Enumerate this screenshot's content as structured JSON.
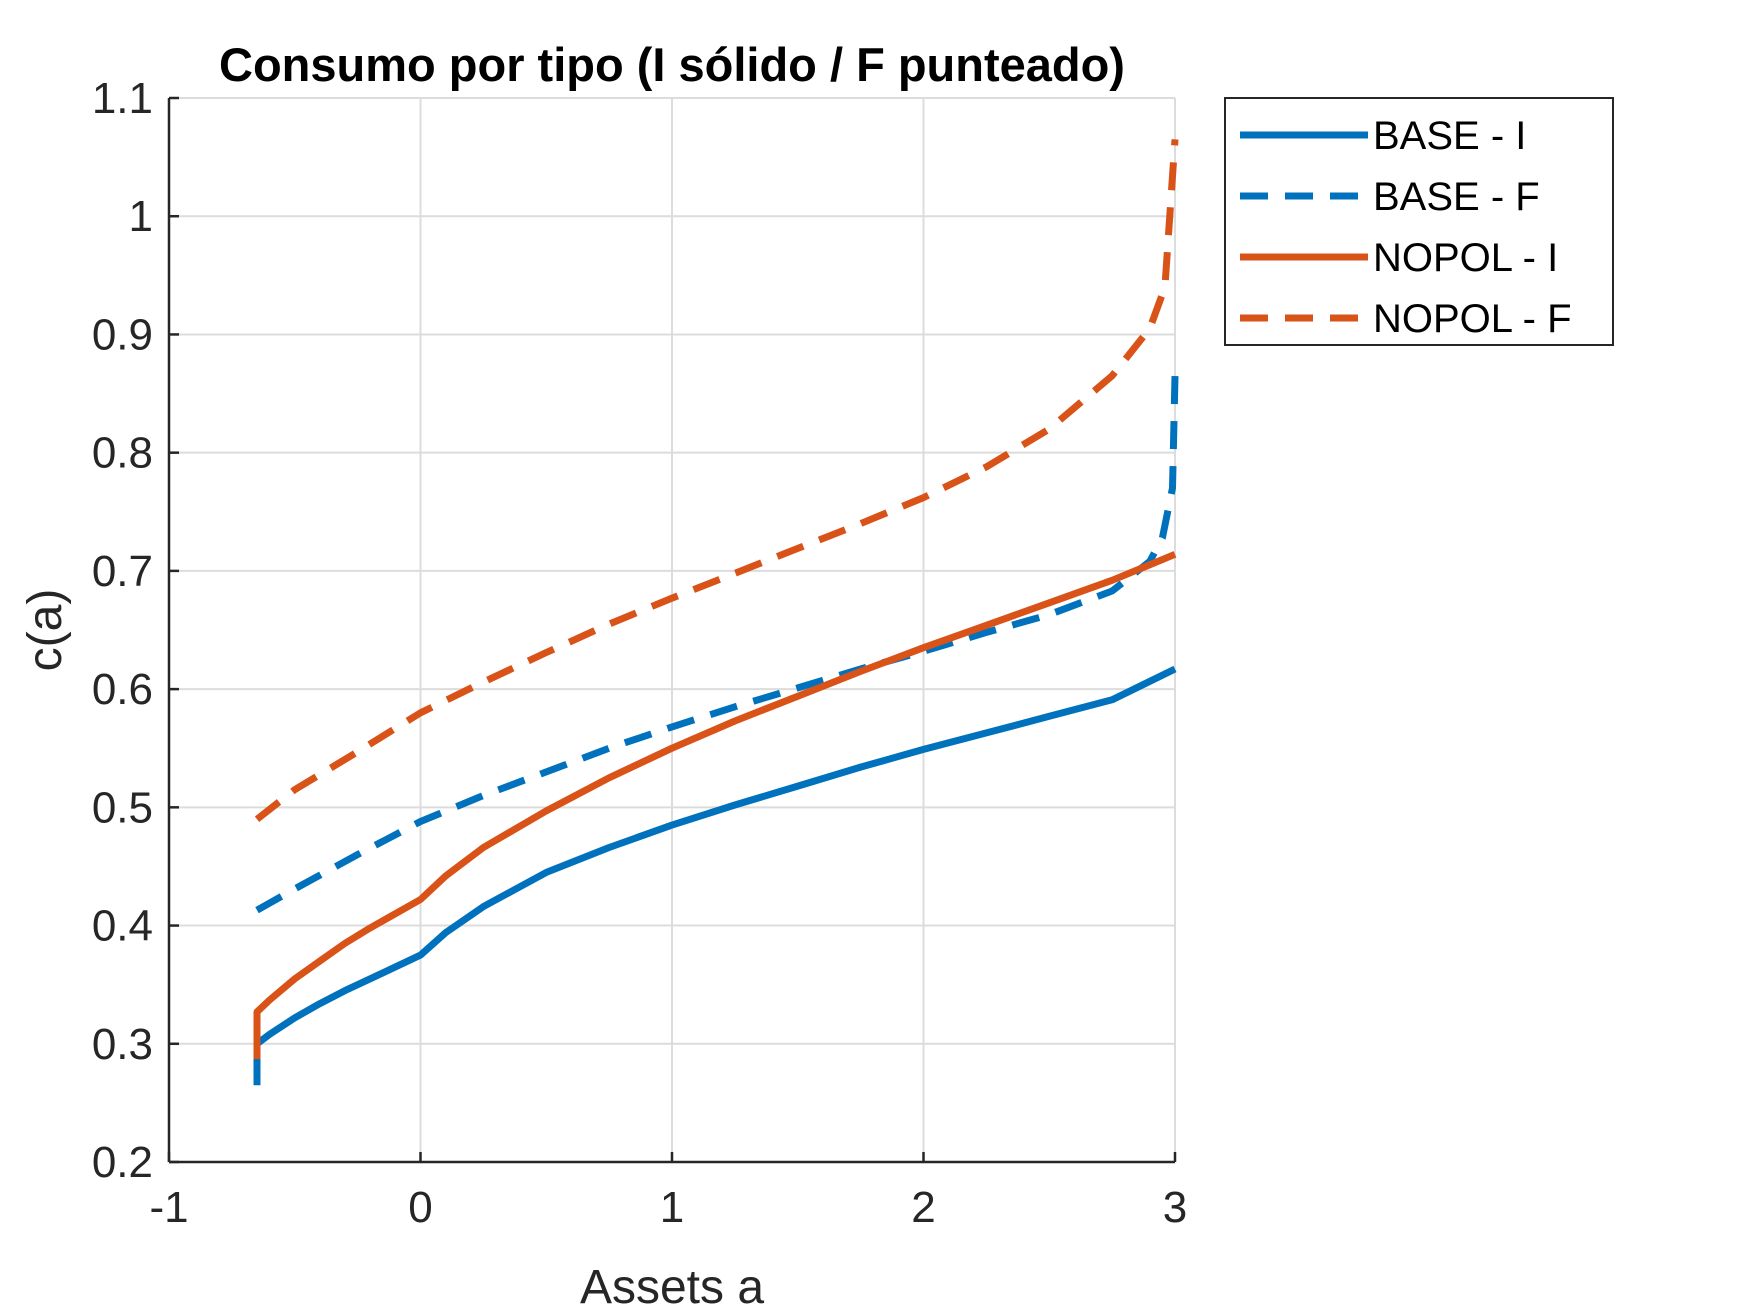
{
  "chart_data": {
    "type": "line",
    "title": "Consumo por tipo (I sólido / F punteado)",
    "xlabel": "Assets a",
    "ylabel": "c(a)",
    "xlim": [
      -1,
      3
    ],
    "ylim": [
      0.2,
      1.1
    ],
    "xticks": [
      "-1",
      "0",
      "1",
      "2",
      "3"
    ],
    "yticks": [
      "0.2",
      "0.3",
      "0.4",
      "0.5",
      "0.6",
      "0.7",
      "0.8",
      "0.9",
      "1",
      "1.1"
    ],
    "grid": true,
    "legend": {
      "placement": "outside top-right",
      "entries": [
        "BASE - I",
        "BASE - F",
        "NOPOL - I",
        "NOPOL - F"
      ]
    },
    "colors": {
      "base": "#0072BD",
      "nopol": "#D95319"
    },
    "series": [
      {
        "name": "BASE - I",
        "style": "solid",
        "color": "#0072BD",
        "x": [
          -0.65,
          -0.65,
          -0.6,
          -0.5,
          -0.4,
          -0.3,
          -0.2,
          -0.1,
          0,
          0.1,
          0.25,
          0.5,
          0.75,
          1,
          1.25,
          1.5,
          1.75,
          2,
          2.25,
          2.5,
          2.75,
          3
        ],
        "y": [
          0.265,
          0.3,
          0.308,
          0.322,
          0.334,
          0.345,
          0.355,
          0.365,
          0.375,
          0.394,
          0.416,
          0.445,
          0.466,
          0.485,
          0.502,
          0.518,
          0.534,
          0.549,
          0.563,
          0.577,
          0.591,
          0.617
        ]
      },
      {
        "name": "BASE - F",
        "style": "dashed",
        "color": "#0072BD",
        "x": [
          -0.65,
          -0.5,
          -0.25,
          0,
          0.25,
          0.5,
          0.75,
          1,
          1.25,
          1.5,
          1.75,
          2,
          2.25,
          2.5,
          2.75,
          2.9,
          2.95,
          2.99,
          3
        ],
        "y": [
          0.413,
          0.431,
          0.46,
          0.488,
          0.51,
          0.53,
          0.55,
          0.568,
          0.585,
          0.601,
          0.617,
          0.632,
          0.648,
          0.663,
          0.683,
          0.708,
          0.728,
          0.77,
          0.865
        ]
      },
      {
        "name": "NOPOL - I",
        "style": "solid",
        "color": "#D95319",
        "x": [
          -0.65,
          -0.65,
          -0.6,
          -0.5,
          -0.4,
          -0.3,
          -0.2,
          -0.1,
          0,
          0.1,
          0.25,
          0.5,
          0.75,
          1,
          1.25,
          1.5,
          1.75,
          2,
          2.25,
          2.5,
          2.75,
          3
        ],
        "y": [
          0.287,
          0.327,
          0.337,
          0.355,
          0.37,
          0.385,
          0.398,
          0.41,
          0.422,
          0.442,
          0.466,
          0.497,
          0.525,
          0.55,
          0.573,
          0.594,
          0.615,
          0.635,
          0.654,
          0.673,
          0.692,
          0.714
        ]
      },
      {
        "name": "NOPOL - F",
        "style": "dashed",
        "color": "#D95319",
        "x": [
          -0.65,
          -0.5,
          -0.25,
          0,
          0.25,
          0.5,
          0.75,
          1,
          1.25,
          1.5,
          1.75,
          2,
          2.25,
          2.5,
          2.75,
          2.9,
          2.96,
          3
        ],
        "y": [
          0.49,
          0.515,
          0.547,
          0.58,
          0.606,
          0.631,
          0.655,
          0.677,
          0.698,
          0.719,
          0.74,
          0.762,
          0.788,
          0.82,
          0.865,
          0.905,
          0.94,
          1.065
        ]
      }
    ]
  }
}
